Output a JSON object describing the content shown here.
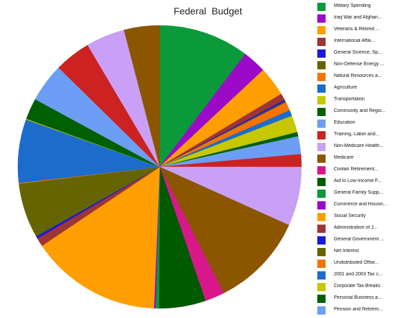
{
  "chart_data": {
    "type": "pie",
    "title": "Federal  Budget",
    "legend_position": "right",
    "slices": [
      {
        "label": "Military Spending",
        "value": 10.7,
        "color": "#0a9a3a"
      },
      {
        "label": "Iraq War and Afghan...",
        "value": 2.8,
        "color": "#9b0ac8"
      },
      {
        "label": "Veterans & Retired ...",
        "value": 3.5,
        "color": "#ff9e00"
      },
      {
        "label": "International Affai...",
        "value": 0.8,
        "color": "#9e3535"
      },
      {
        "label": "General Science, Sp...",
        "value": 0.2,
        "color": "#1a1ad8"
      },
      {
        "label": "Non-Defense Energy ...",
        "value": 0.15,
        "color": "#656500"
      },
      {
        "label": "Natural Resources a...",
        "value": 1.0,
        "color": "#f57300"
      },
      {
        "label": "Agriculture",
        "value": 0.7,
        "color": "#1c6ccc"
      },
      {
        "label": "Transportation",
        "value": 2.0,
        "color": "#c7c700"
      },
      {
        "label": "Community and Regio...",
        "value": 0.5,
        "color": "#006000"
      },
      {
        "label": "Education",
        "value": 2.1,
        "color": "#6d9ef5"
      },
      {
        "label": "Training, Labor and...",
        "value": 1.5,
        "color": "#cc2222"
      },
      {
        "label": "Non-Medicare Health...",
        "value": 7.0,
        "color": "#c9a0f5"
      },
      {
        "label": "Medicare",
        "value": 11.2,
        "color": "#8c5500"
      },
      {
        "label": "Civilian Retirement...",
        "value": 2.3,
        "color": "#d8188a"
      },
      {
        "label": "Aid to Low-Income F...",
        "value": 5.5,
        "color": "#005a00"
      },
      {
        "label": "General Family Supp...",
        "value": 0.4,
        "color": "#0a9a3a"
      },
      {
        "label": "Commerce and Housin...",
        "value": 0.2,
        "color": "#9b0ac8"
      },
      {
        "label": "Social Security",
        "value": 15.5,
        "color": "#ff9e00"
      },
      {
        "label": "Administration of J...",
        "value": 1.0,
        "color": "#9e3535"
      },
      {
        "label": "General Government ...",
        "value": 0.3,
        "color": "#1a1ad8"
      },
      {
        "label": "Net Interest",
        "value": 6.5,
        "color": "#656500"
      },
      {
        "label": "Undistributed Offse...",
        "value": 0.1,
        "color": "#f57300"
      },
      {
        "label": "2001 and 2003 Tax c...",
        "value": 7.5,
        "color": "#1c6ccc"
      },
      {
        "label": "Corporate Tax Breaks",
        "value": 0.1,
        "color": "#c7c700"
      },
      {
        "label": "Personal Business a...",
        "value": 2.5,
        "color": "#006000"
      },
      {
        "label": "Pension and Retirem...",
        "value": 4.6,
        "color": "#6d9ef5"
      },
      {
        "label": "",
        "value": 4.3,
        "color": "#cc2222"
      },
      {
        "label": "",
        "value": 4.6,
        "color": "#c9a0f5"
      },
      {
        "label": "",
        "value": 4.2,
        "color": "#8c5500"
      }
    ]
  }
}
